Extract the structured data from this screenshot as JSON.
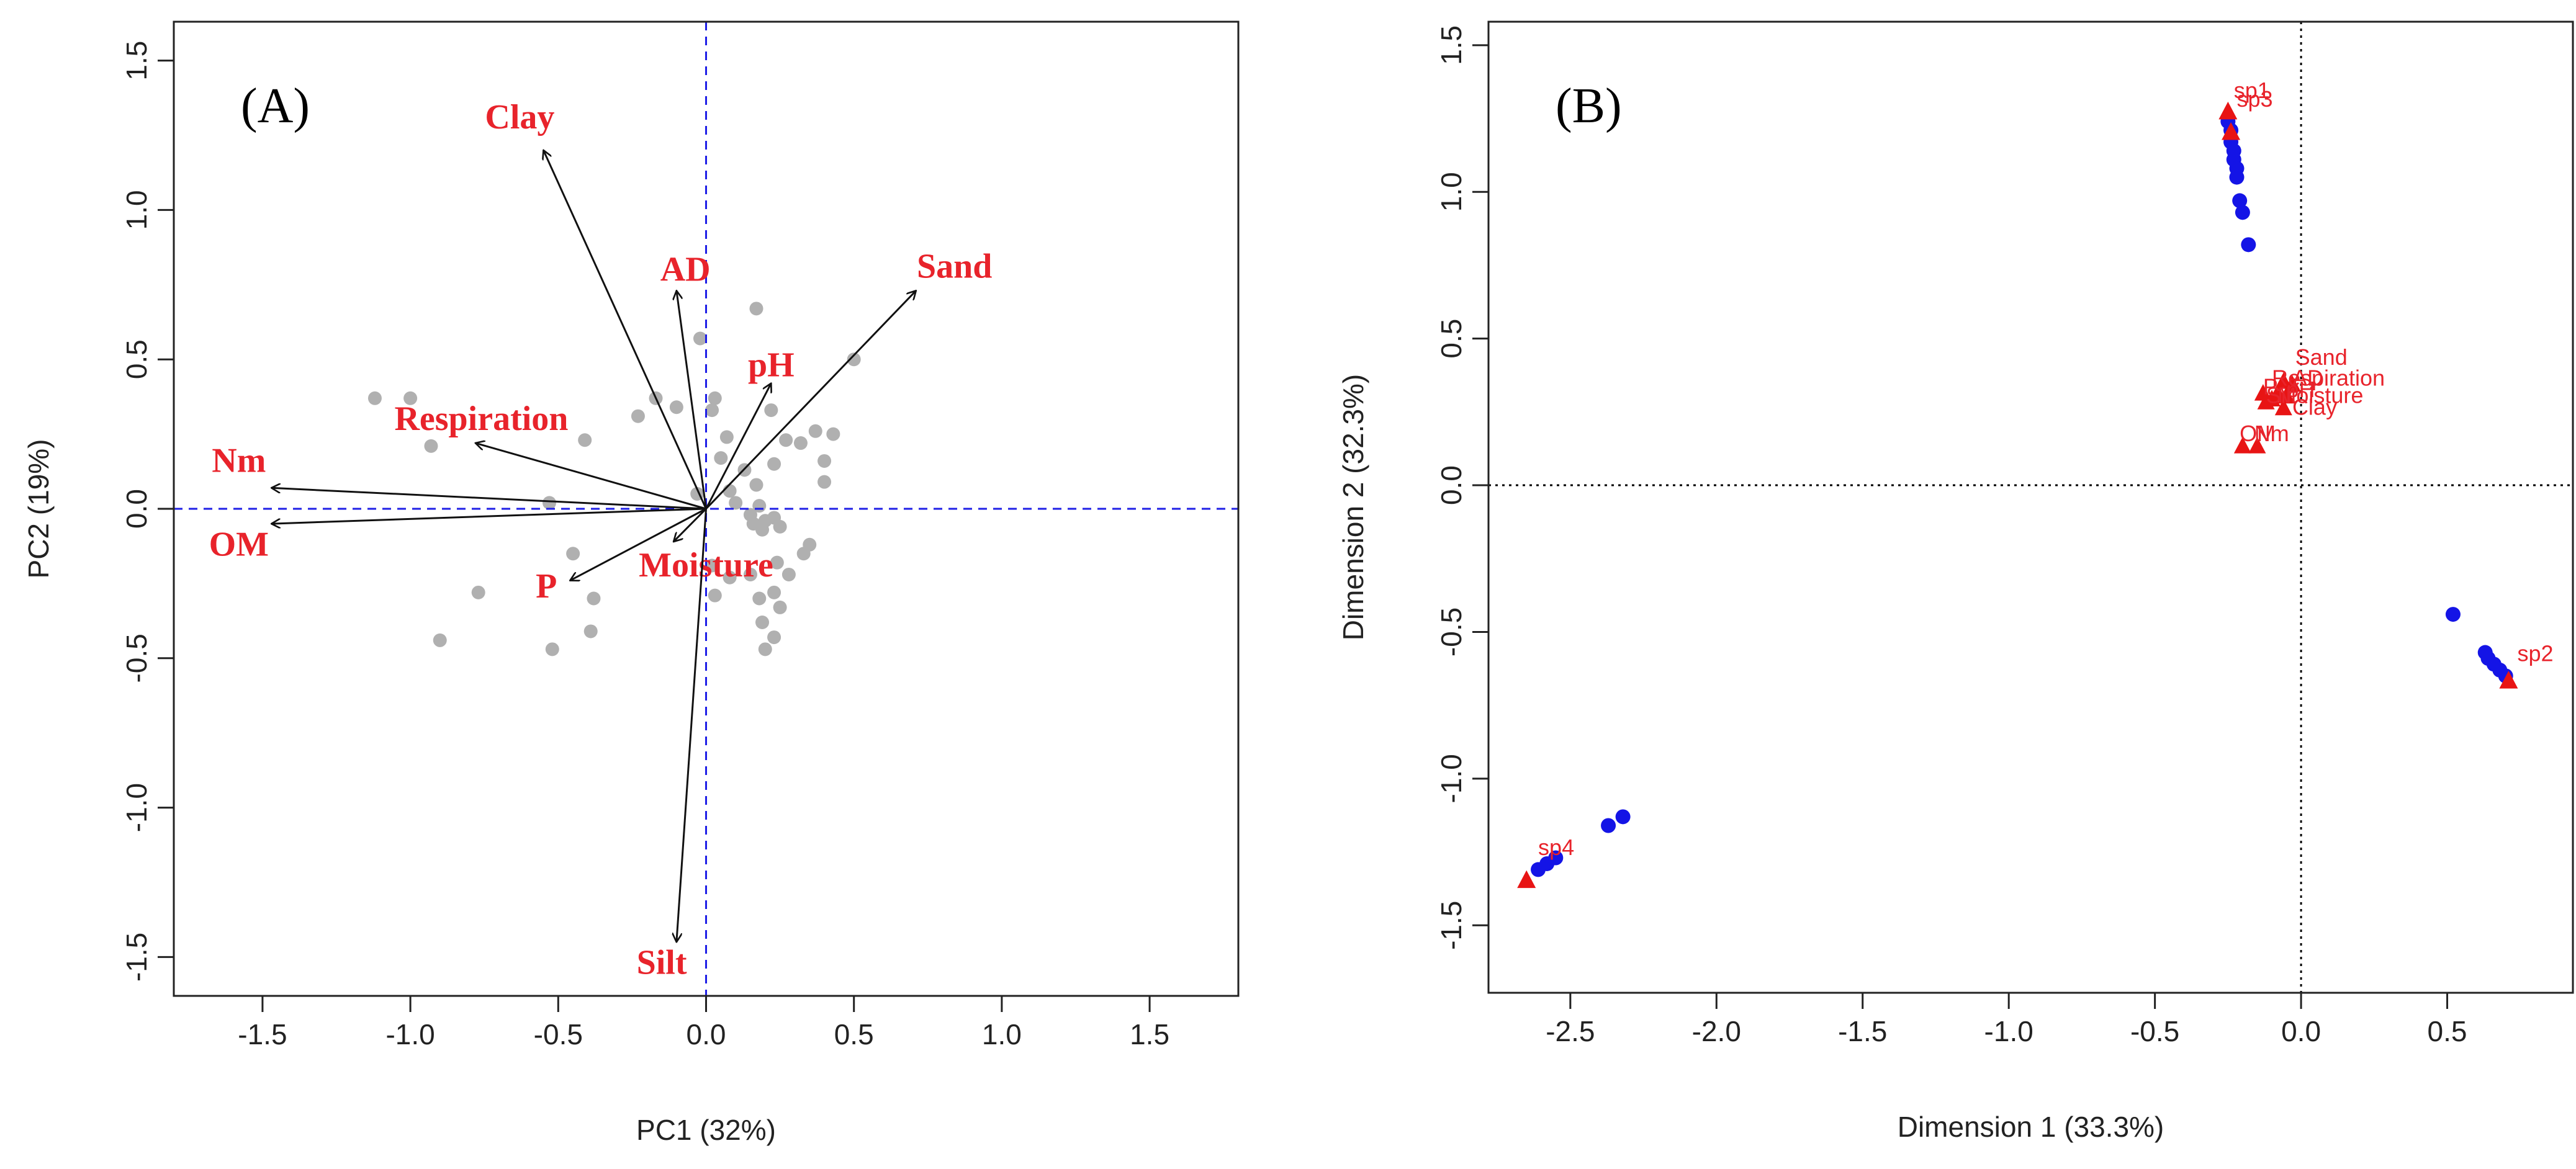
{
  "colors": {
    "axis": "#222222",
    "arrow": "#111111",
    "var_label": "#e8232b",
    "point_grey": "#b0b0b0",
    "ref_line_a": "#1e1ee6",
    "ref_line_b": "#000000",
    "point_blue": "#1414e6",
    "triangle_red": "#e81414",
    "label_red": "#e8232b"
  },
  "chart_data": [
    {
      "type": "scatter",
      "subtype": "pca-biplot",
      "panel_label": "(A)",
      "xlabel": "PC1 (32%)",
      "ylabel": "PC2 (19%)",
      "xlim": [
        -1.8,
        1.8
      ],
      "ylim": [
        -1.63,
        1.63
      ],
      "xticks": [
        -1.5,
        -1.0,
        -0.5,
        0.0,
        0.5,
        1.0,
        1.5
      ],
      "xtick_labels": [
        "-1.5",
        "-1.0",
        "-0.5",
        "0.0",
        "0.5",
        "1.0",
        "1.5"
      ],
      "yticks": [
        -1.5,
        -1.0,
        -0.5,
        0.0,
        0.5,
        1.0,
        1.5
      ],
      "ytick_labels": [
        "-1.5",
        "-1.0",
        "-0.5",
        "0.0",
        "0.5",
        "1.0",
        "1.5"
      ],
      "reference_lines": {
        "x": 0,
        "y": 0,
        "style": "dashed"
      },
      "loadings": [
        {
          "name": "Clay",
          "x": -0.55,
          "y": 1.2,
          "label_x": -0.63,
          "label_y": 1.3
        },
        {
          "name": "AD",
          "x": -0.1,
          "y": 0.73,
          "label_x": -0.07,
          "label_y": 0.79
        },
        {
          "name": "Sand",
          "x": 0.71,
          "y": 0.73,
          "label_x": 0.84,
          "label_y": 0.8
        },
        {
          "name": "pH",
          "x": 0.22,
          "y": 0.42,
          "label_x": 0.22,
          "label_y": 0.47
        },
        {
          "name": "Respiration",
          "x": -0.78,
          "y": 0.22,
          "label_x": -0.76,
          "label_y": 0.29
        },
        {
          "name": "Nm",
          "x": -1.47,
          "y": 0.07,
          "label_x": -1.58,
          "label_y": 0.15
        },
        {
          "name": "OM",
          "x": -1.47,
          "y": -0.05,
          "label_x": -1.58,
          "label_y": -0.13
        },
        {
          "name": "P",
          "x": -0.46,
          "y": -0.24,
          "label_x": -0.54,
          "label_y": -0.27
        },
        {
          "name": "Moisture",
          "x": -0.11,
          "y": -0.11,
          "label_x": 0.0,
          "label_y": -0.2
        },
        {
          "name": "Silt",
          "x": -0.1,
          "y": -1.45,
          "label_x": -0.15,
          "label_y": -1.53
        }
      ],
      "scores": [
        [
          -1.12,
          0.37
        ],
        [
          -1.0,
          0.37
        ],
        [
          -0.93,
          0.21
        ],
        [
          -0.77,
          -0.28
        ],
        [
          -0.9,
          -0.44
        ],
        [
          -0.53,
          0.02
        ],
        [
          -0.45,
          -0.15
        ],
        [
          -0.41,
          0.23
        ],
        [
          -0.39,
          -0.41
        ],
        [
          -0.38,
          -0.3
        ],
        [
          -0.52,
          -0.47
        ],
        [
          -0.23,
          0.31
        ],
        [
          -0.17,
          0.37
        ],
        [
          -0.1,
          0.34
        ],
        [
          -0.03,
          0.05
        ],
        [
          0.02,
          0.33
        ],
        [
          0.03,
          0.37
        ],
        [
          0.05,
          0.17
        ],
        [
          0.07,
          0.24
        ],
        [
          0.08,
          0.06
        ],
        [
          0.13,
          0.13
        ],
        [
          0.17,
          0.08
        ],
        [
          0.1,
          0.02
        ],
        [
          0.15,
          -0.02
        ],
        [
          0.16,
          -0.05
        ],
        [
          0.19,
          -0.07
        ],
        [
          0.2,
          -0.04
        ],
        [
          0.23,
          -0.03
        ],
        [
          0.25,
          -0.06
        ],
        [
          0.02,
          -0.19
        ],
        [
          0.08,
          -0.23
        ],
        [
          0.03,
          -0.29
        ],
        [
          0.15,
          -0.22
        ],
        [
          0.18,
          -0.3
        ],
        [
          0.19,
          -0.38
        ],
        [
          0.23,
          -0.28
        ],
        [
          0.25,
          -0.33
        ],
        [
          0.23,
          -0.43
        ],
        [
          0.2,
          -0.47
        ],
        [
          0.24,
          -0.18
        ],
        [
          0.28,
          -0.22
        ],
        [
          0.33,
          -0.15
        ],
        [
          0.35,
          -0.12
        ],
        [
          0.22,
          0.33
        ],
        [
          0.27,
          0.23
        ],
        [
          0.32,
          0.22
        ],
        [
          0.37,
          0.26
        ],
        [
          0.43,
          0.25
        ],
        [
          0.4,
          0.16
        ],
        [
          0.4,
          0.09
        ],
        [
          0.5,
          0.5
        ],
        [
          0.17,
          0.67
        ],
        [
          -0.02,
          0.57
        ],
        [
          0.18,
          0.01
        ],
        [
          0.23,
          0.15
        ]
      ]
    },
    {
      "type": "scatter",
      "subtype": "ordination",
      "panel_label": "(B)",
      "xlabel": "Dimension 1 (33.3%)",
      "ylabel": "Dimension 2 (32.3%)",
      "xlim": [
        -2.78,
        0.93
      ],
      "ylim": [
        -1.73,
        1.58
      ],
      "xticks": [
        -2.5,
        -2.0,
        -1.5,
        -1.0,
        -0.5,
        0.0,
        0.5
      ],
      "xtick_labels": [
        "-2.5",
        "-2.0",
        "-1.5",
        "-1.0",
        "-0.5",
        "0.0",
        "0.5"
      ],
      "yticks": [
        -1.5,
        -1.0,
        -0.5,
        0.0,
        0.5,
        1.0,
        1.5
      ],
      "ytick_labels": [
        "-1.5",
        "-1.0",
        "-0.5",
        "0.0",
        "0.5",
        "1.0",
        "1.5"
      ],
      "reference_lines": {
        "x": 0,
        "y": 0,
        "style": "dotted"
      },
      "sample_points": [
        [
          -0.25,
          1.24
        ],
        [
          -0.24,
          1.21
        ],
        [
          -0.24,
          1.17
        ],
        [
          -0.23,
          1.14
        ],
        [
          -0.23,
          1.11
        ],
        [
          -0.22,
          1.08
        ],
        [
          -0.22,
          1.05
        ],
        [
          -0.21,
          0.97
        ],
        [
          -0.2,
          0.93
        ],
        [
          -0.18,
          0.82
        ],
        [
          0.52,
          -0.44
        ],
        [
          0.63,
          -0.57
        ],
        [
          0.64,
          -0.59
        ],
        [
          0.66,
          -0.61
        ],
        [
          0.68,
          -0.63
        ],
        [
          0.7,
          -0.65
        ],
        [
          -2.32,
          -1.13
        ],
        [
          -2.37,
          -1.16
        ],
        [
          -2.55,
          -1.27
        ],
        [
          -2.58,
          -1.29
        ],
        [
          -2.61,
          -1.31
        ]
      ],
      "species": [
        {
          "name": "sp1",
          "x": -0.25,
          "y": 1.27,
          "label_dx": 0.02,
          "label_dy": 0.05
        },
        {
          "name": "sp3",
          "x": -0.24,
          "y": 1.2,
          "label_dx": 0.02,
          "label_dy": 0.09
        },
        {
          "name": "sp2",
          "x": 0.71,
          "y": -0.67,
          "label_dx": 0.03,
          "label_dy": 0.07
        },
        {
          "name": "sp4",
          "x": -2.65,
          "y": -1.35,
          "label_dx": 0.04,
          "label_dy": 0.09
        }
      ],
      "variables": [
        {
          "name": "Sand",
          "x": -0.06,
          "y": 0.35,
          "label_dx": 0.04,
          "label_dy": 0.06
        },
        {
          "name": "Respiration",
          "x": -0.08,
          "y": 0.31,
          "label_dx": -0.02,
          "label_dy": 0.03
        },
        {
          "name": "AD",
          "x": -0.03,
          "y": 0.34,
          "label_dx": 0.0,
          "label_dy": 0.0
        },
        {
          "name": "pH",
          "x": -0.05,
          "y": 0.3,
          "label_dx": 0.0,
          "label_dy": 0.0
        },
        {
          "name": "Moisture",
          "x": -0.1,
          "y": 0.29,
          "label_dx": 0.02,
          "label_dy": -0.01
        },
        {
          "name": "Clay",
          "x": -0.06,
          "y": 0.26,
          "label_dx": 0.03,
          "label_dy": -0.02
        },
        {
          "name": "P",
          "x": -0.13,
          "y": 0.31,
          "label_dx": 0.0,
          "label_dy": 0.0
        },
        {
          "name": "Silt",
          "x": -0.12,
          "y": 0.28,
          "label_dx": 0.0,
          "label_dy": 0.0
        },
        {
          "name": "OM",
          "x": -0.2,
          "y": 0.13,
          "label_dx": -0.01,
          "label_dy": 0.02
        },
        {
          "name": "Nm",
          "x": -0.15,
          "y": 0.13,
          "label_dx": -0.01,
          "label_dy": 0.02
        }
      ]
    }
  ]
}
